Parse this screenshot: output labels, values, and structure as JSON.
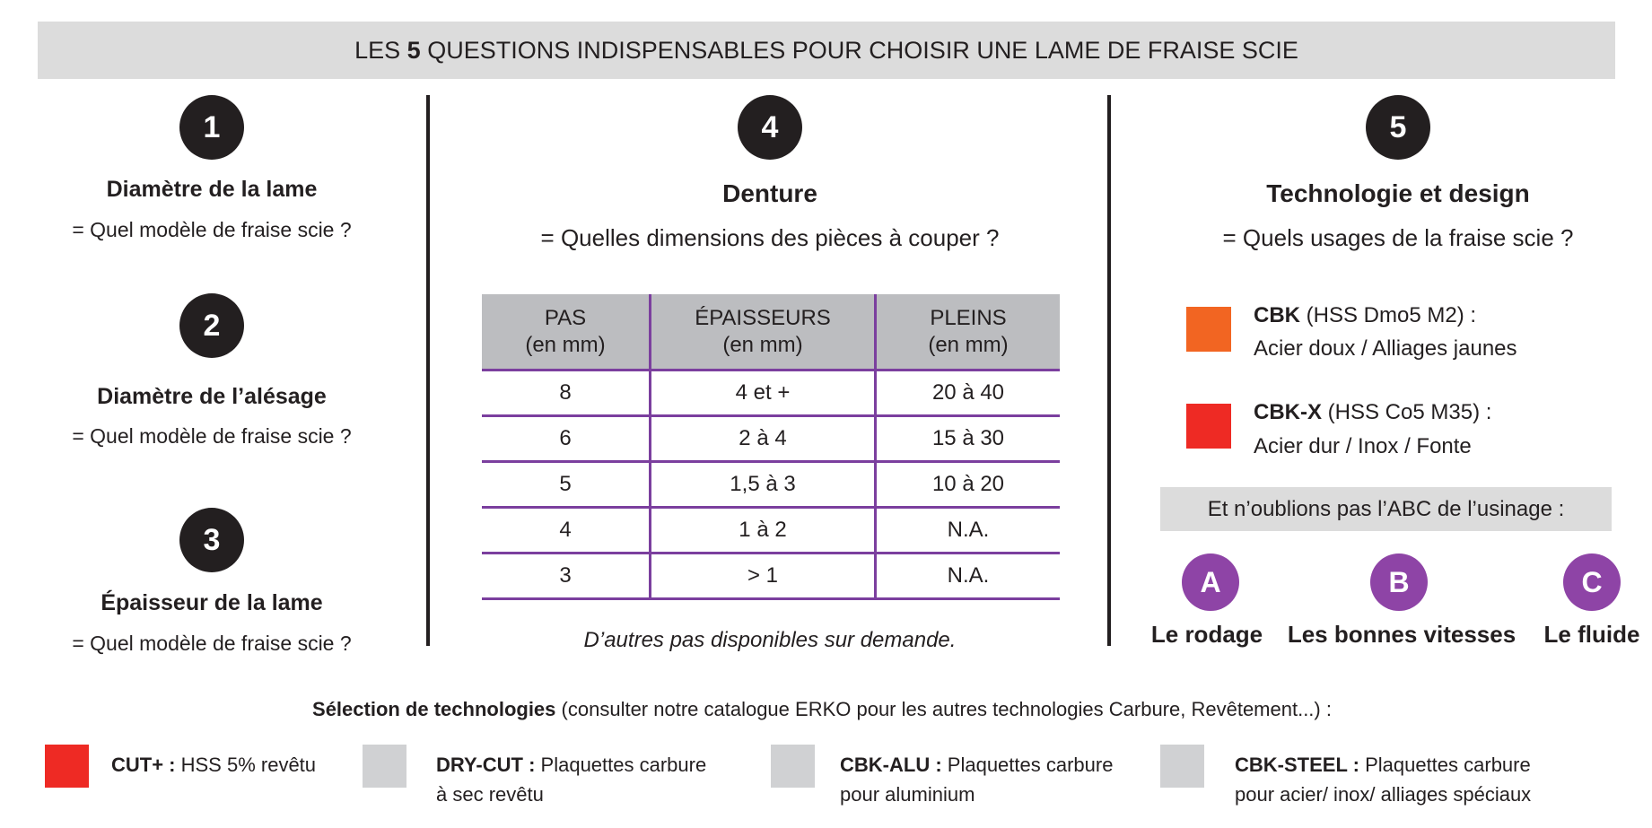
{
  "header": {
    "title_before": "LES",
    "title_number": "5",
    "title_after": "QUESTIONS INDISPENSABLES POUR CHOISIR UNE LAME DE FRAISE SCIE"
  },
  "questions": [
    {
      "number": "1",
      "title": "Diamètre de la lame",
      "subtitle": "= Quel modèle de fraise scie ?"
    },
    {
      "number": "2",
      "title": "Diamètre de l’alésage",
      "subtitle": "= Quel modèle de fraise scie ?"
    },
    {
      "number": "3",
      "title": "Épaisseur de la lame",
      "subtitle": "= Quel modèle de fraise scie ?"
    },
    {
      "number": "4",
      "title": "Denture",
      "subtitle": "= Quelles dimensions des pièces à couper ?"
    },
    {
      "number": "5",
      "title": "Technologie et design",
      "subtitle": "= Quels usages de la fraise scie ?"
    }
  ],
  "table": {
    "header": [
      [
        "PAS",
        "(en mm)"
      ],
      [
        "ÉPAISSEURS",
        "(en mm)"
      ],
      [
        "PLEINS",
        "(en mm)"
      ]
    ],
    "rows": [
      [
        "8",
        "4 et +",
        "20 à 40"
      ],
      [
        "6",
        "2 à 4",
        "15 à 30"
      ],
      [
        "5",
        "1,5 à 3",
        "10 à 20"
      ],
      [
        "4",
        "1 à 2",
        "N.A."
      ],
      [
        "3",
        "> 1",
        "N.A."
      ]
    ],
    "note": "D’autres pas disponibles sur demande."
  },
  "technologies": [
    {
      "name": "CBK",
      "spec": "(HSS Dmo5 M2) :",
      "usage": "Acier doux / Alliages jaunes",
      "color": "#f26522"
    },
    {
      "name": "CBK-X",
      "spec": "(HSS Co5 M35) :",
      "usage": "Acier dur / Inox / Fonte",
      "color": "#ee2a24"
    }
  ],
  "abc": {
    "banner": "Et n’oublions pas l’ABC de l’usinage :",
    "items": [
      {
        "letter": "A",
        "label": "Le rodage"
      },
      {
        "letter": "B",
        "label": "Les bonnes vitesses"
      },
      {
        "letter": "C",
        "label": "Le fluide"
      }
    ]
  },
  "footer": {
    "heading_bold": "Sélection de technologies",
    "heading_rest": "(consulter notre catalogue ERKO pour les autres technologies Carbure, Revêtement...) :",
    "items": [
      {
        "name": "CUT+ :",
        "lines": [
          "HSS 5% revêtu"
        ],
        "color": "#ee2a24"
      },
      {
        "name": "DRY-CUT :",
        "lines": [
          "Plaquettes carbure",
          "à sec revêtu"
        ],
        "color": "#d0d1d3"
      },
      {
        "name": "CBK-ALU :",
        "lines": [
          "Plaquettes carbure",
          "pour aluminium"
        ],
        "color": "#d0d1d3"
      },
      {
        "name": "CBK-STEEL :",
        "lines": [
          "Plaquettes carbure",
          "pour acier/ inox/ alliages spéciaux"
        ],
        "color": "#d0d1d3"
      }
    ]
  }
}
